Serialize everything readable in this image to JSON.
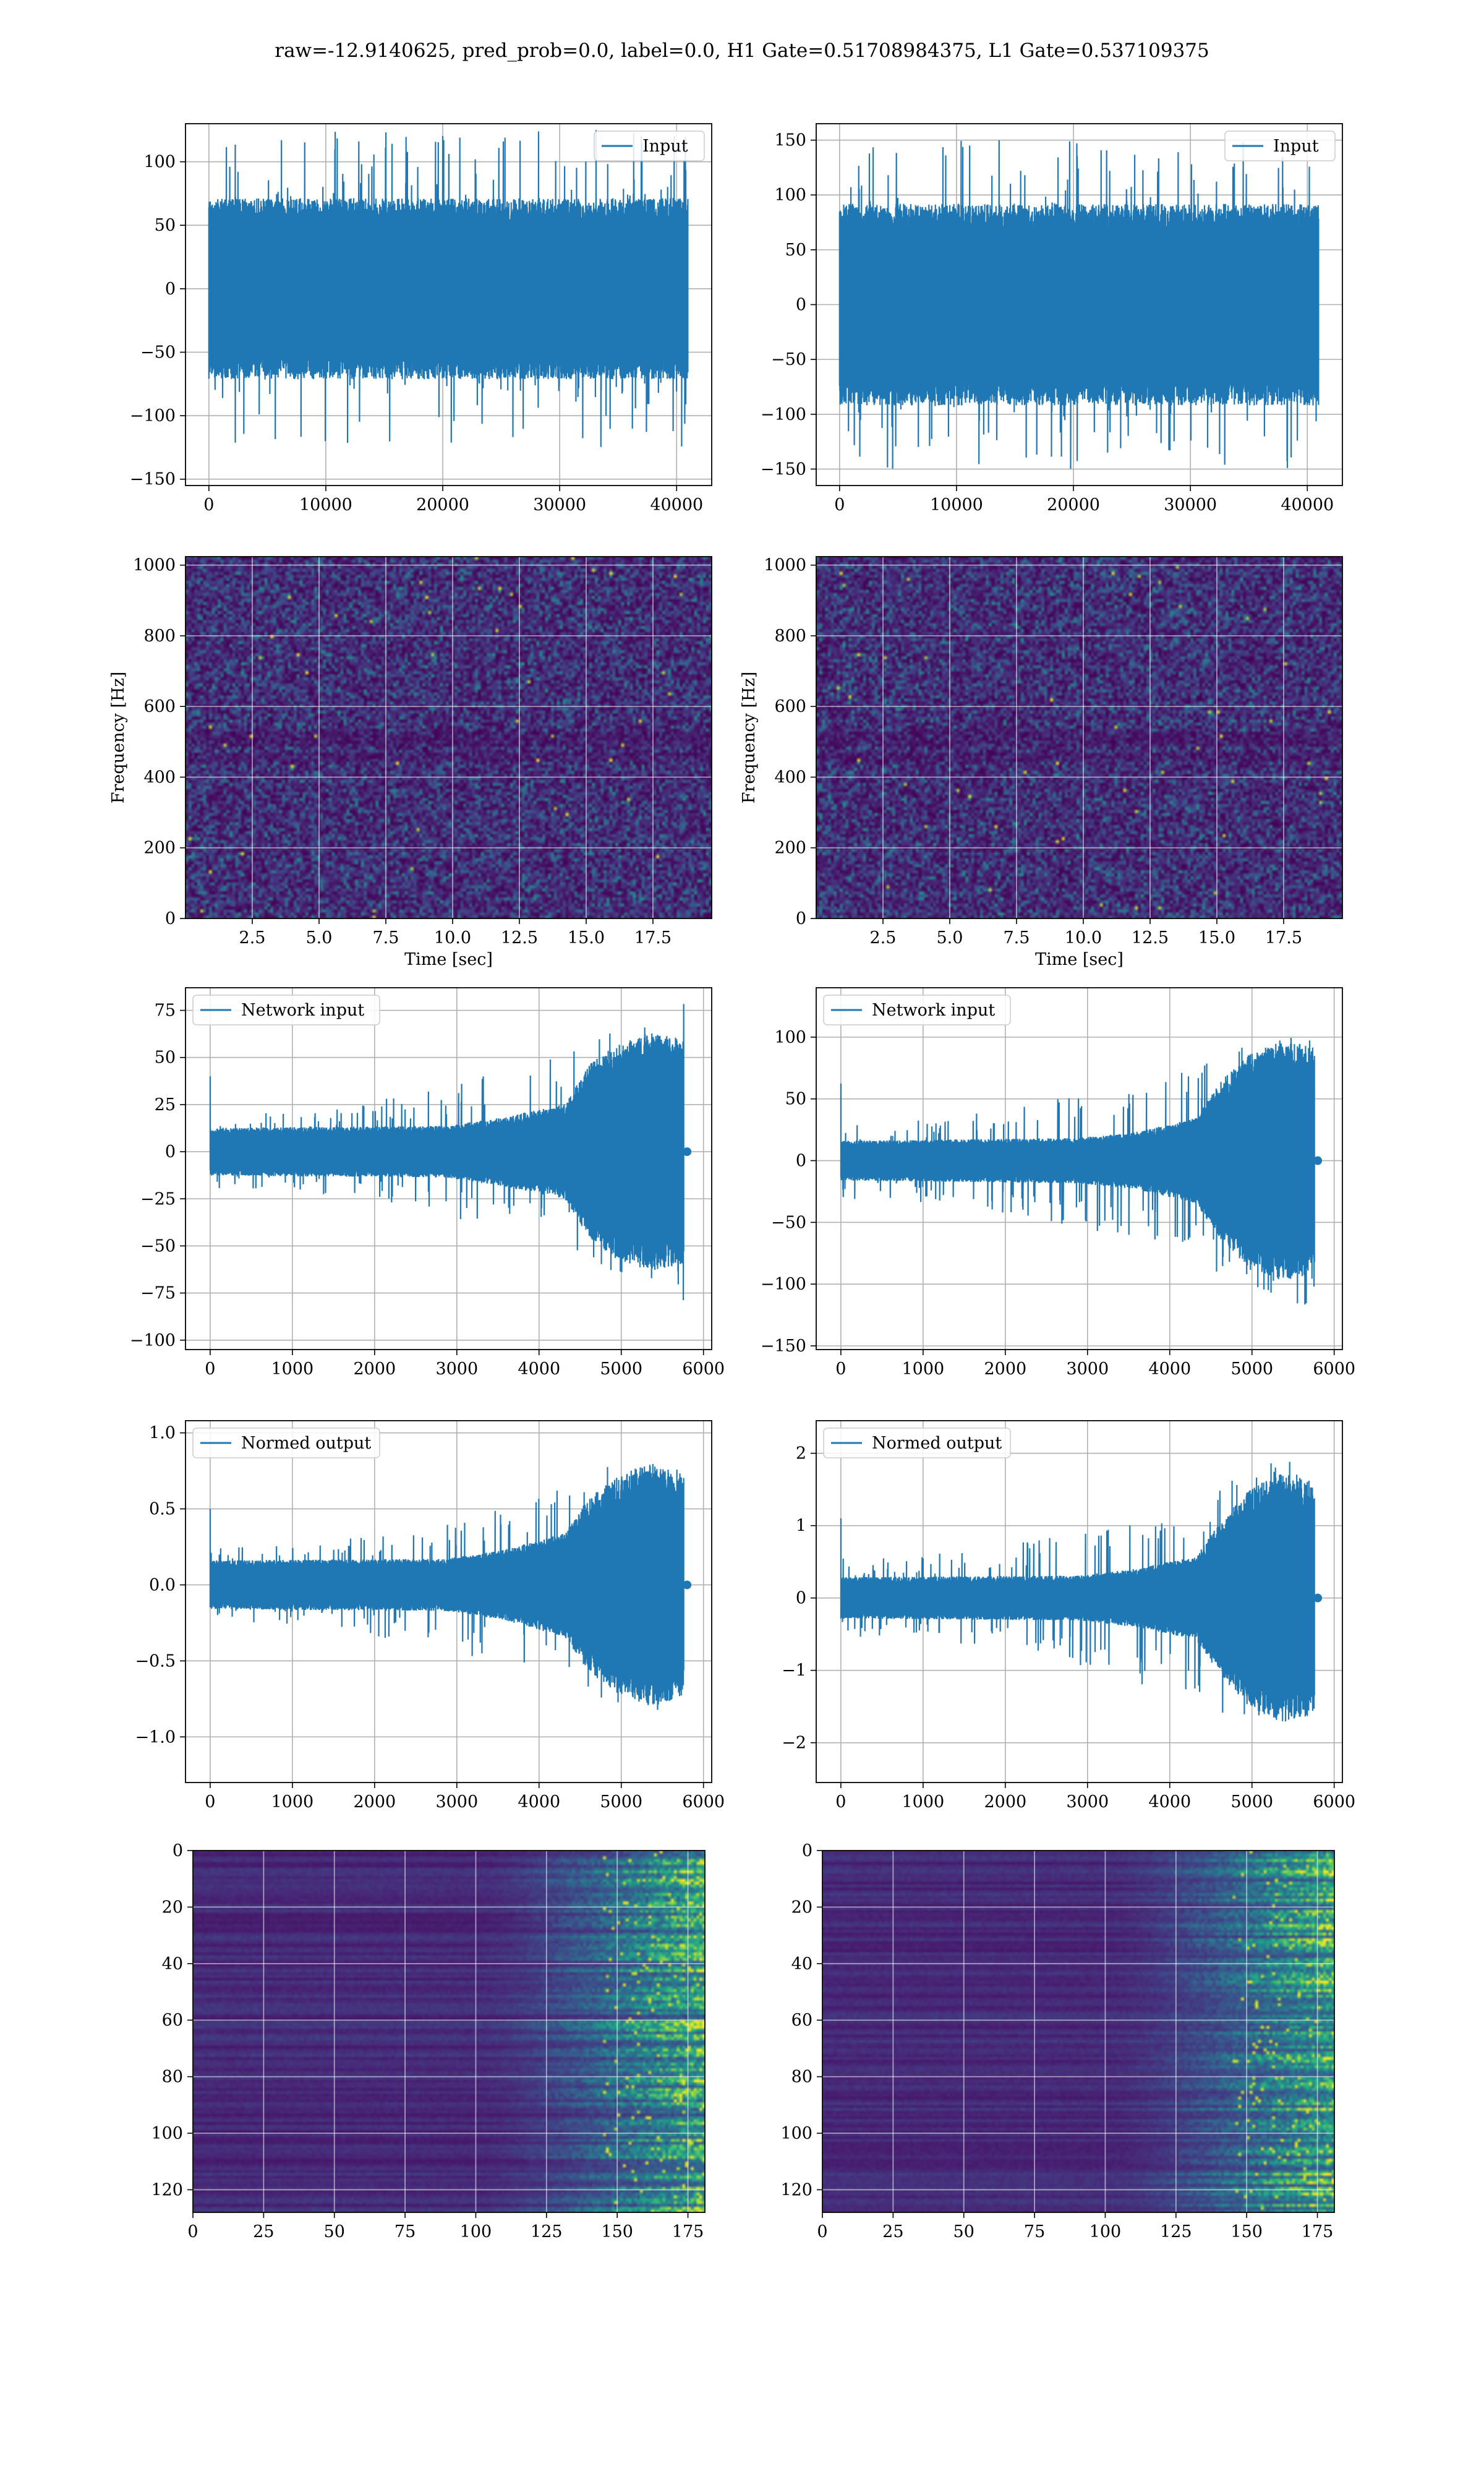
{
  "figure": {
    "suptitle": "raw=-12.9140625, pred_prob=0.0, label=0.0, H1 Gate=0.51708984375, L1 Gate=0.537109375"
  },
  "chart_data": [
    {
      "id": "p1l",
      "type": "line",
      "legend": "Input",
      "legend_loc": "upper right",
      "grid": true,
      "xlim": [
        -2000,
        43000
      ],
      "ylim": [
        -155,
        130
      ],
      "xticks": [
        0,
        10000,
        20000,
        30000,
        40000
      ],
      "xtick_labels": [
        "0",
        "10000",
        "20000",
        "30000",
        "40000"
      ],
      "yticks": [
        -150,
        -100,
        -50,
        0,
        50,
        100
      ],
      "ytick_labels": [
        "−150",
        "−100",
        "−50",
        "0",
        "50",
        "100"
      ],
      "xlabel": "",
      "ylabel": "",
      "signal": {
        "kind": "noise",
        "n": 40960,
        "env": [
          [
            0,
            62
          ],
          [
            1,
            62
          ]
        ],
        "spike_amp": 125,
        "tail": [],
        "color": "#1f77b4"
      }
    },
    {
      "id": "p1r",
      "type": "line",
      "legend": "Input",
      "legend_loc": "upper right",
      "grid": true,
      "xlim": [
        -2000,
        43000
      ],
      "ylim": [
        -165,
        165
      ],
      "xticks": [
        0,
        10000,
        20000,
        30000,
        40000
      ],
      "xtick_labels": [
        "0",
        "10000",
        "20000",
        "30000",
        "40000"
      ],
      "yticks": [
        -150,
        -100,
        -50,
        0,
        50,
        100,
        150
      ],
      "ytick_labels": [
        "−150",
        "−100",
        "−50",
        "0",
        "50",
        "100",
        "150"
      ],
      "xlabel": "",
      "ylabel": "",
      "signal": {
        "kind": "noise",
        "n": 40960,
        "env": [
          [
            0,
            80
          ],
          [
            1,
            80
          ]
        ],
        "spike_amp": 150,
        "tail": [],
        "color": "#1f77b4"
      }
    },
    {
      "id": "p2l",
      "type": "heatmap",
      "grid": true,
      "xlim": [
        0,
        19.7
      ],
      "ylim": [
        0,
        1024
      ],
      "xticks": [
        2.5,
        5,
        7.5,
        10,
        12.5,
        15,
        17.5
      ],
      "xtick_labels": [
        "2.5",
        "5.0",
        "7.5",
        "10.0",
        "12.5",
        "15.0",
        "17.5"
      ],
      "yticks": [
        0,
        200,
        400,
        600,
        800,
        1000
      ],
      "ytick_labels": [
        "0",
        "200",
        "400",
        "600",
        "800",
        "1000"
      ],
      "xlabel": "Time [sec]",
      "ylabel": "Frequency [Hz]",
      "colormap": "viridis",
      "pattern": "spectrogram-noise"
    },
    {
      "id": "p2r",
      "type": "heatmap",
      "grid": true,
      "xlim": [
        0,
        19.7
      ],
      "ylim": [
        0,
        1024
      ],
      "xticks": [
        2.5,
        5,
        7.5,
        10,
        12.5,
        15,
        17.5
      ],
      "xtick_labels": [
        "2.5",
        "5.0",
        "7.5",
        "10.0",
        "12.5",
        "15.0",
        "17.5"
      ],
      "yticks": [
        0,
        200,
        400,
        600,
        800,
        1000
      ],
      "ytick_labels": [
        "0",
        "200",
        "400",
        "600",
        "800",
        "1000"
      ],
      "xlabel": "Time [sec]",
      "ylabel": "Frequency [Hz]",
      "colormap": "viridis",
      "pattern": "spectrogram-noise"
    },
    {
      "id": "p3l",
      "type": "line",
      "legend": "Network input",
      "legend_loc": "upper left",
      "grid": true,
      "xlim": [
        -300,
        6100
      ],
      "ylim": [
        -105,
        87
      ],
      "xticks": [
        0,
        1000,
        2000,
        3000,
        4000,
        5000,
        6000
      ],
      "xtick_labels": [
        "0",
        "1000",
        "2000",
        "3000",
        "4000",
        "5000",
        "6000"
      ],
      "yticks": [
        -100,
        -75,
        -50,
        -25,
        0,
        25,
        50,
        75
      ],
      "ytick_labels": [
        "−100",
        "−75",
        "−50",
        "−25",
        "0",
        "25",
        "50",
        "75"
      ],
      "xlabel": "",
      "ylabel": "",
      "signal": {
        "kind": "chirp",
        "n": 5760,
        "env": [
          [
            0,
            11
          ],
          [
            0.5,
            12
          ],
          [
            0.62,
            16
          ],
          [
            0.75,
            22
          ],
          [
            0.8,
            40
          ],
          [
            0.86,
            50
          ],
          [
            0.93,
            55
          ],
          [
            1,
            52
          ]
        ],
        "spike_amp": 80,
        "tail": [
          [
            5800,
            0
          ]
        ],
        "color": "#1f77b4"
      }
    },
    {
      "id": "p3r",
      "type": "line",
      "legend": "Network input",
      "legend_loc": "upper left",
      "grid": true,
      "xlim": [
        -300,
        6100
      ],
      "ylim": [
        -153,
        140
      ],
      "xticks": [
        0,
        1000,
        2000,
        3000,
        4000,
        5000,
        6000
      ],
      "xtick_labels": [
        "0",
        "1000",
        "2000",
        "3000",
        "4000",
        "5000",
        "6000"
      ],
      "yticks": [
        -150,
        -100,
        -50,
        0,
        50,
        100
      ],
      "ytick_labels": [
        "−150",
        "−100",
        "−50",
        "0",
        "50",
        "100"
      ],
      "xlabel": "",
      "ylabel": "",
      "signal": {
        "kind": "chirp",
        "n": 5760,
        "env": [
          [
            0,
            14
          ],
          [
            0.5,
            16
          ],
          [
            0.62,
            20
          ],
          [
            0.75,
            30
          ],
          [
            0.8,
            55
          ],
          [
            0.86,
            75
          ],
          [
            0.93,
            85
          ],
          [
            1,
            80
          ]
        ],
        "spike_amp": 125,
        "tail": [
          [
            5800,
            0
          ]
        ],
        "color": "#1f77b4"
      }
    },
    {
      "id": "p4l",
      "type": "line",
      "legend": "Normed output",
      "legend_loc": "upper left",
      "grid": true,
      "xlim": [
        -300,
        6100
      ],
      "ylim": [
        -1.3,
        1.08
      ],
      "xticks": [
        0,
        1000,
        2000,
        3000,
        4000,
        5000,
        6000
      ],
      "xtick_labels": [
        "0",
        "1000",
        "2000",
        "3000",
        "4000",
        "5000",
        "6000"
      ],
      "yticks": [
        -1.0,
        -0.5,
        0.0,
        0.5,
        1.0
      ],
      "ytick_labels": [
        "−1.0",
        "−0.5",
        "0.0",
        "0.5",
        "1.0"
      ],
      "xlabel": "",
      "ylabel": "",
      "signal": {
        "kind": "chirp",
        "n": 5760,
        "env": [
          [
            0,
            0.14
          ],
          [
            0.5,
            0.15
          ],
          [
            0.62,
            0.2
          ],
          [
            0.75,
            0.3
          ],
          [
            0.8,
            0.5
          ],
          [
            0.86,
            0.62
          ],
          [
            0.93,
            0.7
          ],
          [
            1,
            0.65
          ]
        ],
        "spike_amp": 1.0,
        "tail": [
          [
            5800,
            0
          ]
        ],
        "color": "#1f77b4"
      }
    },
    {
      "id": "p4r",
      "type": "line",
      "legend": "Normed output",
      "legend_loc": "upper left",
      "grid": true,
      "xlim": [
        -300,
        6100
      ],
      "ylim": [
        -2.55,
        2.45
      ],
      "xticks": [
        0,
        1000,
        2000,
        3000,
        4000,
        5000,
        6000
      ],
      "xtick_labels": [
        "0",
        "1000",
        "2000",
        "3000",
        "4000",
        "5000",
        "6000"
      ],
      "yticks": [
        -2,
        -1,
        0,
        1,
        2
      ],
      "ytick_labels": [
        "−2",
        "−1",
        "0",
        "1",
        "2"
      ],
      "xlabel": "",
      "ylabel": "",
      "signal": {
        "kind": "chirp",
        "n": 5760,
        "env": [
          [
            0,
            0.25
          ],
          [
            0.5,
            0.27
          ],
          [
            0.62,
            0.35
          ],
          [
            0.75,
            0.5
          ],
          [
            0.8,
            0.9
          ],
          [
            0.86,
            1.3
          ],
          [
            0.93,
            1.5
          ],
          [
            1,
            1.4
          ]
        ],
        "spike_amp": 2.2,
        "tail": [
          [
            5800,
            0
          ]
        ],
        "color": "#1f77b4"
      }
    },
    {
      "id": "p5l",
      "type": "heatmap",
      "grid": true,
      "y_inverted": true,
      "xlim": [
        0,
        181
      ],
      "ylim": [
        128,
        0
      ],
      "xticks": [
        0,
        25,
        50,
        75,
        100,
        125,
        150,
        175
      ],
      "xtick_labels": [
        "0",
        "25",
        "50",
        "75",
        "100",
        "125",
        "150",
        "175"
      ],
      "yticks": [
        0,
        20,
        40,
        60,
        80,
        100,
        120
      ],
      "ytick_labels": [
        "0",
        "20",
        "40",
        "60",
        "80",
        "100",
        "120"
      ],
      "xlabel": "",
      "ylabel": "",
      "colormap": "viridis",
      "pattern": "feature-map"
    },
    {
      "id": "p5r",
      "type": "heatmap",
      "grid": true,
      "y_inverted": true,
      "xlim": [
        0,
        181
      ],
      "ylim": [
        128,
        0
      ],
      "xticks": [
        0,
        25,
        50,
        75,
        100,
        125,
        150,
        175
      ],
      "xtick_labels": [
        "0",
        "25",
        "50",
        "75",
        "100",
        "125",
        "150",
        "175"
      ],
      "yticks": [
        0,
        20,
        40,
        60,
        80,
        100,
        120
      ],
      "ytick_labels": [
        "0",
        "20",
        "40",
        "60",
        "80",
        "100",
        "120"
      ],
      "xlabel": "",
      "ylabel": "",
      "colormap": "viridis",
      "pattern": "feature-map"
    }
  ]
}
